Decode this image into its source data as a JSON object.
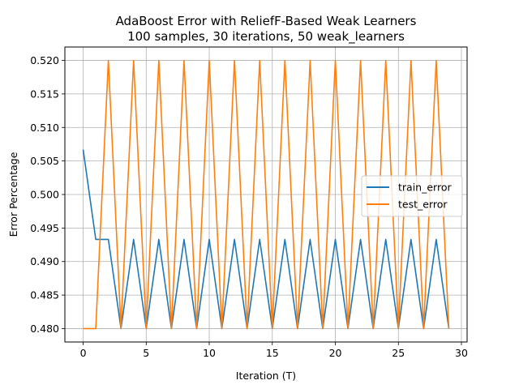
{
  "chart_data": {
    "type": "line",
    "title": "AdaBoost Error with ReliefF-Based Weak Learners",
    "subtitle": "100 samples, 30 iterations, 50 weak_learners",
    "xlabel": "Iteration (T)",
    "ylabel": "Error Percentage",
    "xlim": [
      -1.45,
      30.45
    ],
    "ylim": [
      0.478,
      0.522
    ],
    "xticks": [
      0,
      5,
      10,
      15,
      20,
      25,
      30
    ],
    "yticks": [
      0.48,
      0.485,
      0.49,
      0.495,
      0.5,
      0.505,
      0.51,
      0.515,
      0.52
    ],
    "grid": true,
    "legend": "center-right",
    "x": [
      0,
      1,
      2,
      3,
      4,
      5,
      6,
      7,
      8,
      9,
      10,
      11,
      12,
      13,
      14,
      15,
      16,
      17,
      18,
      19,
      20,
      21,
      22,
      23,
      24,
      25,
      26,
      27,
      28,
      29
    ],
    "series": [
      {
        "name": "train_error",
        "color": "#1f77b4",
        "values": [
          0.5067,
          0.4933,
          0.4933,
          0.48,
          0.4933,
          0.48,
          0.4933,
          0.48,
          0.4933,
          0.48,
          0.4933,
          0.48,
          0.4933,
          0.48,
          0.4933,
          0.48,
          0.4933,
          0.48,
          0.4933,
          0.48,
          0.4933,
          0.48,
          0.4933,
          0.48,
          0.4933,
          0.48,
          0.4933,
          0.48,
          0.4933,
          0.48
        ]
      },
      {
        "name": "test_error",
        "color": "#ff7f0e",
        "values": [
          0.48,
          0.48,
          0.52,
          0.48,
          0.52,
          0.48,
          0.52,
          0.48,
          0.52,
          0.48,
          0.52,
          0.48,
          0.52,
          0.48,
          0.52,
          0.48,
          0.52,
          0.48,
          0.52,
          0.48,
          0.52,
          0.48,
          0.52,
          0.48,
          0.52,
          0.48,
          0.52,
          0.48,
          0.52,
          0.48
        ]
      }
    ]
  }
}
